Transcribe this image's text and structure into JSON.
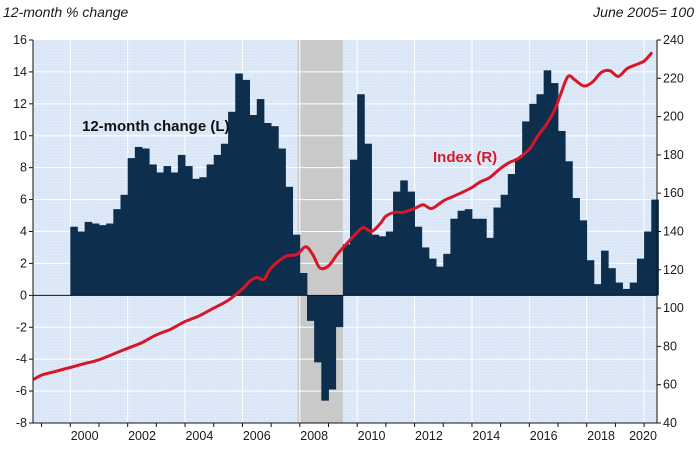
{
  "chart_data": {
    "type": "bar+line",
    "title": "",
    "left_axis_label": "12-month % change",
    "right_axis_label": "June 2005= 100",
    "left_ylim": [
      -8,
      16
    ],
    "right_ylim": [
      40,
      240
    ],
    "left_ticks": [
      "16",
      "14",
      "12",
      "10",
      "8",
      "6",
      "4",
      "2",
      "0",
      "-2",
      "-4",
      "-6",
      "-8"
    ],
    "right_ticks": [
      "240",
      "220",
      "200",
      "180",
      "160",
      "140",
      "120",
      "100",
      "80",
      "60",
      "40"
    ],
    "x_ticks": [
      "2000",
      "2002",
      "2004",
      "2006",
      "2008",
      "2010",
      "2012",
      "2014",
      "2016",
      "2018",
      "2020"
    ],
    "xlim": [
      1998.7,
      2020.45
    ],
    "grid": true,
    "recession": {
      "start": 2007.92,
      "end": 2009.5
    },
    "colors": {
      "bars": "#0d2e4c",
      "index_line": "#d7162a",
      "plot_bg": "#dde9f7",
      "recession": "#c9c9c9",
      "grid": "#ffffff"
    },
    "series": [
      {
        "name": "12-month change (L)",
        "type": "bar",
        "axis": "left",
        "x": [
          2000.0,
          2000.25,
          2000.5,
          2000.75,
          2001.0,
          2001.25,
          2001.5,
          2001.75,
          2002.0,
          2002.25,
          2002.5,
          2002.75,
          2003.0,
          2003.25,
          2003.5,
          2003.75,
          2004.0,
          2004.25,
          2004.5,
          2004.75,
          2005.0,
          2005.25,
          2005.5,
          2005.75,
          2006.0,
          2006.25,
          2006.5,
          2006.75,
          2007.0,
          2007.25,
          2007.5,
          2007.75,
          2008.0,
          2008.25,
          2008.5,
          2008.75,
          2009.0,
          2009.25,
          2009.5,
          2009.75,
          2010.0,
          2010.25,
          2010.5,
          2010.75,
          2011.0,
          2011.25,
          2011.5,
          2011.75,
          2012.0,
          2012.25,
          2012.5,
          2012.75,
          2013.0,
          2013.25,
          2013.5,
          2013.75,
          2014.0,
          2014.25,
          2014.5,
          2014.75,
          2015.0,
          2015.25,
          2015.5,
          2015.75,
          2016.0,
          2016.25,
          2016.5,
          2016.75,
          2017.0,
          2017.25,
          2017.5,
          2017.75,
          2018.0,
          2018.25,
          2018.5,
          2018.75,
          2019.0,
          2019.25,
          2019.5,
          2019.75,
          2020.0,
          2020.25
        ],
        "values": [
          4.3,
          4.0,
          4.6,
          4.5,
          4.4,
          4.5,
          5.4,
          6.3,
          8.6,
          9.3,
          9.2,
          8.2,
          7.7,
          8.1,
          7.7,
          8.8,
          8.1,
          7.3,
          7.4,
          8.2,
          8.8,
          9.5,
          11.5,
          13.9,
          13.5,
          11.3,
          12.3,
          10.8,
          10.6,
          9.2,
          6.8,
          3.8,
          1.4,
          -1.6,
          -4.2,
          -6.6,
          -5.9,
          -2.0,
          3.2,
          8.5,
          12.6,
          9.5,
          3.8,
          3.7,
          4.0,
          6.5,
          7.2,
          6.5,
          4.3,
          3.0,
          2.3,
          1.8,
          2.6,
          4.8,
          5.3,
          5.4,
          4.8,
          4.8,
          3.6,
          5.5,
          6.3,
          7.6,
          8.6,
          10.9,
          12.0,
          12.6,
          14.1,
          13.3,
          10.3,
          8.4,
          6.1,
          4.7,
          2.2,
          0.7,
          2.8,
          1.7,
          0.8,
          0.4,
          0.8,
          2.3,
          4.0,
          6.0
        ]
      },
      {
        "name": "Index (R)",
        "type": "line",
        "axis": "right",
        "x": [
          1998.75,
          1999.0,
          1999.5,
          2000.0,
          2000.5,
          2001.0,
          2001.5,
          2002.0,
          2002.5,
          2003.0,
          2003.5,
          2004.0,
          2004.5,
          2005.0,
          2005.5,
          2006.0,
          2006.25,
          2006.5,
          2006.75,
          2007.0,
          2007.5,
          2007.9,
          2008.2,
          2008.45,
          2008.7,
          2009.0,
          2009.3,
          2009.6,
          2009.9,
          2010.2,
          2010.5,
          2010.8,
          2011.0,
          2011.3,
          2011.6,
          2012.0,
          2012.3,
          2012.6,
          2013.0,
          2013.3,
          2013.6,
          2014.0,
          2014.3,
          2014.6,
          2015.0,
          2015.3,
          2015.6,
          2016.0,
          2016.3,
          2016.6,
          2016.9,
          2017.1,
          2017.35,
          2017.6,
          2017.9,
          2018.2,
          2018.5,
          2018.8,
          2019.1,
          2019.4,
          2019.7,
          2020.0,
          2020.25
        ],
        "values": [
          63,
          65,
          67,
          69,
          71,
          73,
          76,
          79,
          82,
          86,
          89,
          93,
          96,
          100,
          104,
          110,
          114,
          116,
          115,
          121,
          127,
          128,
          132,
          128,
          121,
          122,
          128,
          133,
          138,
          142,
          140,
          144,
          148,
          150,
          150,
          152,
          154,
          152,
          156,
          158,
          160,
          163,
          166,
          168,
          173,
          176,
          178,
          183,
          190,
          196,
          204,
          212,
          221,
          219,
          216,
          218,
          223,
          224,
          221,
          225,
          227,
          229,
          233
        ]
      }
    ],
    "annotations": [
      "12-month change (L)",
      "Index (R)"
    ]
  }
}
